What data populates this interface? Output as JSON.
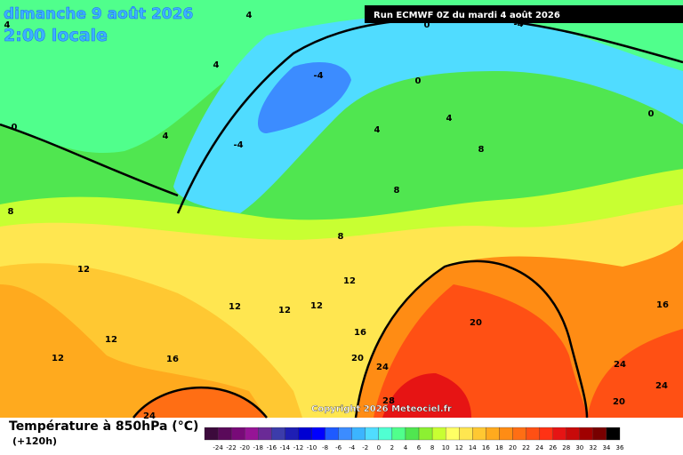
{
  "header": {
    "title": "dimanche 9 août 2026",
    "time": "2:00 locale",
    "run": "Run ECMWF 0Z du mardi 4 août 2026"
  },
  "copyright": "Copyright 2026 Meteociel.fr",
  "legend": {
    "title": "Température à 850hPa (°C)",
    "subtitle": "(+120h)",
    "labels": [
      "-24",
      "-22",
      "-20",
      "-18",
      "-16",
      "-14",
      "-12",
      "-10",
      "-8",
      "-6",
      "-4",
      "-2",
      "0",
      "2",
      "4",
      "6",
      "8",
      "10",
      "12",
      "14",
      "16",
      "18",
      "20",
      "22",
      "24",
      "26",
      "28",
      "30",
      "32",
      "34",
      "36"
    ],
    "colors": [
      "#3c0a3c",
      "#5a0a5a",
      "#780a78",
      "#961496",
      "#6a2a96",
      "#3c3caa",
      "#1e1eb4",
      "#0000d2",
      "#0000ff",
      "#1e5aff",
      "#3c8cff",
      "#3cb4ff",
      "#50dcff",
      "#50ffd2",
      "#50ff8c",
      "#50e650",
      "#8cf032",
      "#c8ff32",
      "#ffff64",
      "#ffe650",
      "#ffc832",
      "#ffaa1e",
      "#ff8c14",
      "#ff6e14",
      "#ff5014",
      "#ff3214",
      "#e61414",
      "#c80a0a",
      "#a00000",
      "#780000",
      "#000000"
    ]
  },
  "contour_labels": [
    "4",
    "4",
    "0",
    "-4",
    "4",
    "-4",
    "0",
    "0",
    "4",
    "-4",
    "4",
    "4",
    "8",
    "0",
    "8",
    "8",
    "8",
    "12",
    "12",
    "12",
    "12",
    "12",
    "12",
    "16",
    "12",
    "16",
    "20",
    "24",
    "20",
    "16",
    "24",
    "24",
    "20",
    "28",
    "24"
  ]
}
